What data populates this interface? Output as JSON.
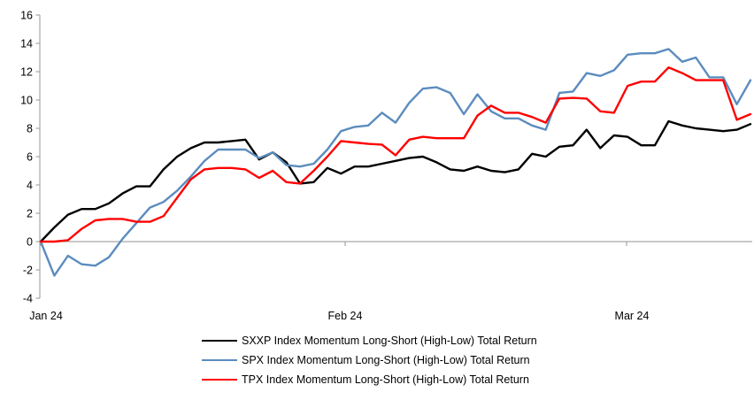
{
  "chart_data": {
    "type": "line",
    "title": "",
    "background": "#FFFFFF",
    "axis_color": "#A6A6A6",
    "grid": "zero-baseline-only",
    "legend_position": "bottom",
    "x_axis": {
      "tick_labels": [
        "Jan 24",
        "Feb 24",
        "Mar 24"
      ]
    },
    "y_axis": {
      "min": -4,
      "max": 16,
      "step": 2,
      "ticks": [
        16,
        14,
        12,
        10,
        8,
        6,
        4,
        2,
        0,
        -2,
        -4
      ]
    },
    "series": [
      {
        "name": "SXXP Index Momentum Long-Short (High-Low) Total Return",
        "color": "#000000",
        "values": [
          0.0,
          1.0,
          1.9,
          2.3,
          2.3,
          2.7,
          3.4,
          3.9,
          3.9,
          5.1,
          6.0,
          6.6,
          7.0,
          7.0,
          7.1,
          7.2,
          5.8,
          6.3,
          5.6,
          4.1,
          4.2,
          5.2,
          4.8,
          5.3,
          5.3,
          5.5,
          5.7,
          5.9,
          6.0,
          5.6,
          5.1,
          5.0,
          5.3,
          5.0,
          4.9,
          5.1,
          6.2,
          6.0,
          6.7,
          6.8,
          7.9,
          6.6,
          7.5,
          7.4,
          6.8,
          6.8,
          8.5,
          8.2,
          8.0,
          7.9,
          7.8,
          7.9,
          8.3
        ]
      },
      {
        "name": "SPX Index Momentum Long-Short (High-Low) Total Return",
        "color": "#5B8CBE",
        "values": [
          0.0,
          -2.4,
          -1.0,
          -1.6,
          -1.7,
          -1.1,
          0.2,
          1.3,
          2.4,
          2.8,
          3.6,
          4.6,
          5.7,
          6.5,
          6.5,
          6.5,
          5.9,
          6.3,
          5.4,
          5.3,
          5.5,
          6.5,
          7.8,
          8.1,
          8.2,
          9.1,
          8.4,
          9.8,
          10.8,
          10.9,
          10.5,
          9.0,
          10.4,
          9.2,
          8.7,
          8.7,
          8.2,
          7.9,
          10.5,
          10.6,
          11.9,
          11.7,
          12.1,
          13.2,
          13.3,
          13.3,
          13.6,
          12.7,
          13.0,
          11.6,
          11.6,
          9.7,
          11.4
        ]
      },
      {
        "name": "TPX Index Momentum Long-Short (High-Low) Total Return",
        "color": "#FF0000",
        "values": [
          0.0,
          0.0,
          0.1,
          0.9,
          1.5,
          1.6,
          1.6,
          1.4,
          1.4,
          1.8,
          3.1,
          4.4,
          5.1,
          5.2,
          5.2,
          5.1,
          4.5,
          5.0,
          4.2,
          4.1,
          5.0,
          6.0,
          7.1,
          7.0,
          6.9,
          6.85,
          6.1,
          7.2,
          7.4,
          7.3,
          7.3,
          7.3,
          8.9,
          9.6,
          9.1,
          9.1,
          8.8,
          8.4,
          10.1,
          10.15,
          10.1,
          9.2,
          9.1,
          11.0,
          11.3,
          11.3,
          12.3,
          11.9,
          11.4,
          11.4,
          11.4,
          8.6,
          9.0
        ]
      }
    ]
  }
}
